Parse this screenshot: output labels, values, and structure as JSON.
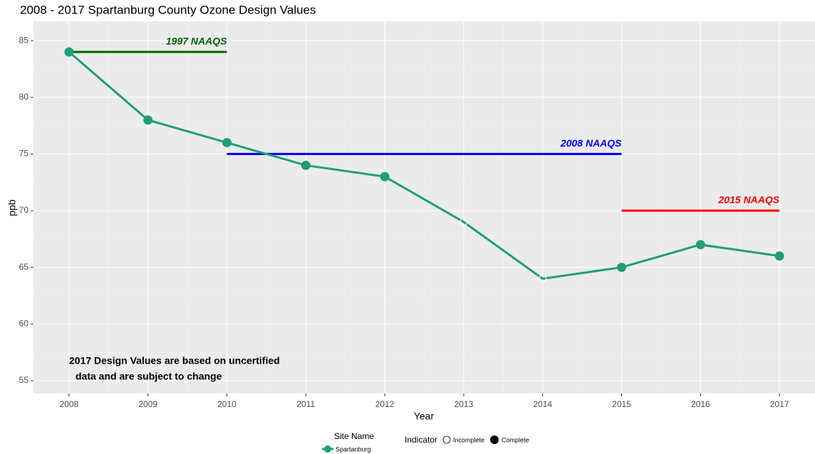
{
  "chart_data": {
    "type": "line",
    "title": "2008 - 2017 Spartanburg County Ozone Design Values",
    "x_label": "Year",
    "y_label": "ppb",
    "x": [
      2008,
      2009,
      2010,
      2011,
      2012,
      2013,
      2014,
      2015,
      2016,
      2017
    ],
    "series": [
      {
        "name": "Spartanburg",
        "color": "#1f9e78",
        "values": [
          84,
          78,
          76,
          74,
          73,
          69,
          64,
          65,
          67,
          66
        ],
        "indicator": [
          "Complete",
          "Complete",
          "Complete",
          "Complete",
          "Complete",
          "Incomplete",
          "Incomplete",
          "Complete",
          "Complete",
          "Complete"
        ]
      }
    ],
    "xlim": [
      2007.55,
      2017.45
    ],
    "ylim": [
      53.87,
      86.7
    ],
    "xticks": [
      2008,
      2009,
      2010,
      2011,
      2012,
      2013,
      2014,
      2015,
      2016,
      2017
    ],
    "yticks": [
      55,
      60,
      65,
      70,
      75,
      80,
      85
    ],
    "xminorticks": [
      2008.5,
      2009.5,
      2010.5,
      2011.5,
      2012.5,
      2013.5,
      2014.5,
      2015.5,
      2016.5
    ],
    "yminorticks": [
      57.5,
      62.5,
      67.5,
      72.5,
      77.5,
      82.5
    ],
    "grid": true,
    "standards": [
      {
        "label": "1997 NAAQS",
        "value": 84,
        "x": [
          2008,
          2010
        ],
        "color": "#006400"
      },
      {
        "label": "2008 NAAQS",
        "value": 75,
        "x": [
          2010,
          2015
        ],
        "color": "#0000ff"
      },
      {
        "label": "2015 NAAQS",
        "value": 70,
        "x": [
          2015,
          2017
        ],
        "color": "#ff0000"
      }
    ],
    "annotation": [
      "2017 Design Values are based on uncertified",
      "data and are subject to change"
    ],
    "legend": {
      "position": "bottom",
      "site_title": "Site Name",
      "indicator_title": "Indicator",
      "indicator_labels": [
        "Incomplete",
        "Complete"
      ]
    }
  }
}
